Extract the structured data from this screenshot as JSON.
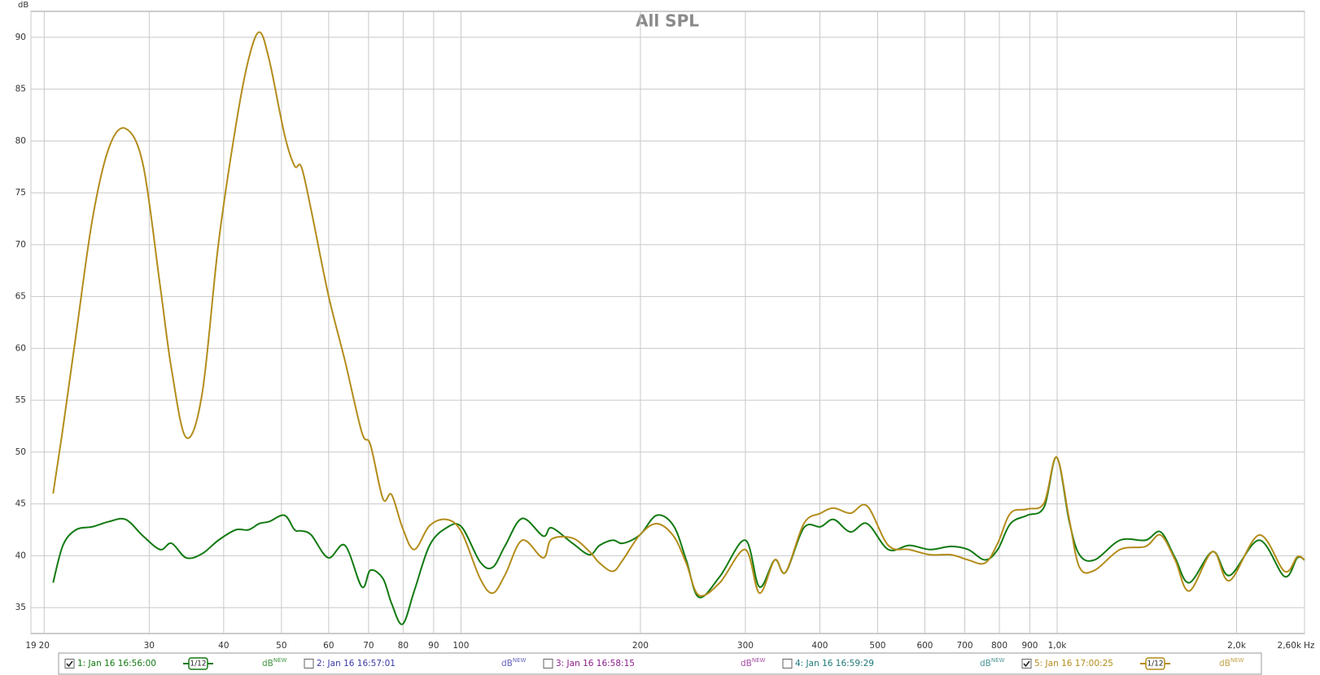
{
  "chart_data": {
    "type": "line",
    "title": "All SPL",
    "x_label": "Hz",
    "y_label": "dB",
    "log_x": true,
    "grid": true,
    "xlim": [
      19,
      2600
    ],
    "ylim": [
      32.5,
      92.5
    ],
    "xticks": [
      19,
      20,
      30,
      40,
      50,
      60,
      70,
      80,
      90,
      100,
      200,
      300,
      400,
      500,
      600,
      700,
      800,
      900,
      {
        "value": 1000,
        "label": "1,0k"
      },
      {
        "value": 2000,
        "label": "2,0k"
      },
      {
        "value": 2600,
        "label": "2,60k"
      }
    ],
    "yticks": [
      35,
      40,
      45,
      50,
      55,
      60,
      65,
      70,
      75,
      80,
      85,
      90
    ],
    "legend_unit": "dB",
    "legend_tag": "NEW",
    "x": [
      20.7,
      21.5,
      22.6,
      24.1,
      25.7,
      27.4,
      29.3,
      31.3,
      32.7,
      34.6,
      36.8,
      39.2,
      41.9,
      44,
      45.9,
      47.7,
      50.6,
      52.6,
      54,
      56.1,
      59.9,
      63.9,
      68.2,
      70.5,
      74,
      76.5,
      79.8,
      83.5,
      88.6,
      94.6,
      100.2,
      107.7,
      113.1,
      118.7,
      126.7,
      137.4,
      141.9,
      153.9,
      164.3,
      170.8,
      179.8,
      186.9,
      199.5,
      213,
      227.3,
      238.7,
      250.6,
      271.8,
      299.8,
      316.7,
      336,
      350.4,
      376,
      401,
      422,
      450,
      480,
      521,
      565,
      612,
      664,
      709,
      757,
      795,
      835,
      891,
      951,
      998,
      1048,
      1090,
      1156,
      1275,
      1407,
      1491,
      1577,
      1666,
      1824,
      1946,
      2182,
      2407,
      2528,
      2600
    ],
    "series": [
      {
        "name": "1: Jan 16 16:56:00",
        "color": "#127a12",
        "checked": true,
        "smoothing": "1/12",
        "values": [
          37.4,
          41.0,
          42.5,
          42.8,
          43.3,
          43.5,
          41.9,
          40.6,
          41.2,
          39.8,
          40.2,
          41.5,
          42.5,
          42.5,
          43.1,
          43.3,
          43.9,
          42.5,
          42.4,
          42.0,
          39.8,
          41.0,
          37.0,
          38.6,
          37.8,
          35.4,
          33.4,
          36.6,
          41.0,
          42.7,
          42.8,
          39.4,
          38.9,
          41.0,
          43.6,
          41.9,
          42.7,
          41.2,
          40.1,
          41.0,
          41.5,
          41.2,
          42.0,
          43.9,
          42.9,
          39.6,
          36.0,
          38.0,
          41.5,
          37.0,
          39.6,
          38.4,
          42.7,
          42.8,
          43.5,
          42.3,
          43.1,
          40.6,
          41.0,
          40.6,
          40.9,
          40.6,
          39.6,
          40.6,
          43.1,
          43.9,
          44.7,
          49.5,
          43.3,
          40.1,
          39.6,
          41.5,
          41.5,
          42.3,
          39.8,
          37.4,
          40.4,
          38.1,
          41.5,
          38.0,
          39.8,
          39.6
        ]
      },
      {
        "name": "2: Jan 16 16:57:01",
        "color": "#3a3aa8",
        "checked": false
      },
      {
        "name": "3: Jan 16 16:58:15",
        "color": "#8a1e8a",
        "checked": false
      },
      {
        "name": "4: Jan 16 16:59:29",
        "color": "#1e7878",
        "checked": false
      },
      {
        "name": "5: Jan 16 17:00:25",
        "color": "#b38c1a",
        "checked": true,
        "smoothing": "1/12",
        "values": [
          46.0,
          52.3,
          61.2,
          72.5,
          79.4,
          81.2,
          77.7,
          66.0,
          58.0,
          51.4,
          55.6,
          70.1,
          81.4,
          87.8,
          90.5,
          87.8,
          80.6,
          77.6,
          77.5,
          73.3,
          65.2,
          58.8,
          51.9,
          50.7,
          45.5,
          45.9,
          42.7,
          40.6,
          42.9,
          43.5,
          42.3,
          37.8,
          36.4,
          38.2,
          41.5,
          39.8,
          41.6,
          41.7,
          40.4,
          39.3,
          38.5,
          39.6,
          42.0,
          43.1,
          41.9,
          39.3,
          36.2,
          37.4,
          40.6,
          36.4,
          39.6,
          38.4,
          43.1,
          44.1,
          44.6,
          44.1,
          44.8,
          41.0,
          40.6,
          40.1,
          40.1,
          39.6,
          39.3,
          41.2,
          44.1,
          44.5,
          45.1,
          49.5,
          43.5,
          38.9,
          38.6,
          40.6,
          40.9,
          42.0,
          39.6,
          36.6,
          40.4,
          37.6,
          42.0,
          38.5,
          39.9,
          39.6
        ]
      }
    ]
  }
}
